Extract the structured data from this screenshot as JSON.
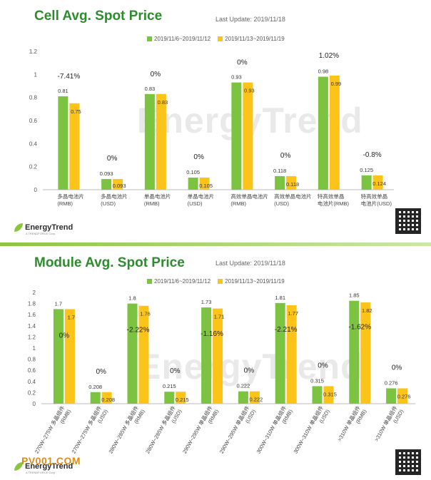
{
  "colors": {
    "green": "#7cc342",
    "yellow": "#fcc419",
    "title": "#2e8b2e"
  },
  "watermark": "EnergyTrend",
  "brand": {
    "name": "EnergyTrend",
    "sub": "A TRENDFORCE Corp."
  },
  "site_watermark": "PV001.COM",
  "chart_data": [
    {
      "type": "bar",
      "title": "Cell Avg. Spot Price",
      "last_update": "Last Update: 2019/11/18",
      "categories": [
        "多晶电池片\n(RMB)",
        "多晶电池片\n(USD)",
        "单晶电池片\n(RMB)",
        "单晶电池片\n(USD)",
        "高效单晶电池片\n(RMB)",
        "高效单晶电池片\n(USD)",
        "特高效单晶\n电池片(RMB)",
        "特高效单晶\n电池片(USD)"
      ],
      "series": [
        {
          "name": "2019/11/6~2019/11/12",
          "values": [
            0.81,
            0.093,
            0.83,
            0.105,
            0.93,
            0.118,
            0.98,
            0.125
          ]
        },
        {
          "name": "2019/11/13~2019/11/19",
          "values": [
            0.75,
            0.093,
            0.83,
            0.105,
            0.93,
            0.118,
            0.99,
            0.124
          ]
        }
      ],
      "value_labels": [
        [
          "0.81",
          "0.093",
          "0.83",
          "0.105",
          "0.93",
          "0.118",
          "0.98",
          "0.125"
        ],
        [
          "0.75",
          "0.093",
          "0.83",
          "0.105",
          "0.93",
          "0.118",
          "0.99",
          "0.124"
        ]
      ],
      "changes": [
        "-7.41%",
        "0%",
        "0%",
        "0%",
        "0%",
        "0%",
        "1.02%",
        "-0.8%"
      ],
      "ylim": [
        0,
        1.2
      ],
      "yticks": [
        0,
        0.2,
        0.4,
        0.6,
        0.8,
        1,
        1.2
      ],
      "ytick_labels": [
        "0",
        "0.2",
        "0.4",
        "0.6",
        "0.8",
        "1",
        "1.2"
      ],
      "legend_position": "top-center",
      "grid": false
    },
    {
      "type": "bar",
      "title": "Module Avg. Spot Price",
      "last_update": "Last Update: 2019/11/18",
      "categories": [
        "270W~275W 多晶组件\n(RMB)",
        "270W~275W 多晶组件\n(USD)",
        "280W~285W 多晶组件\n(RMB)",
        "280W~285W 多晶组件\n(USD)",
        "290W~295W 单晶组件\n(RMB)",
        "290W~295W 单晶组件\n(USD)",
        "300W~310W 单晶组件\n(RMB)",
        "300W~310W 单晶组件\n(USD)",
        ">310W 单晶组件\n(RMB)",
        ">310W 单晶组件\n(USD)"
      ],
      "series": [
        {
          "name": "2019/11/6~2019/11/12",
          "values": [
            1.7,
            0.208,
            1.8,
            0.215,
            1.73,
            0.222,
            1.81,
            0.315,
            1.85,
            0.276
          ]
        },
        {
          "name": "2019/11/13~2019/11/19",
          "values": [
            1.7,
            0.208,
            1.76,
            0.215,
            1.71,
            0.222,
            1.77,
            0.315,
            1.82,
            0.276
          ]
        }
      ],
      "value_labels": [
        [
          "1.7",
          "0.208",
          "1.8",
          "0.215",
          "1.73",
          "0.222",
          "1.81",
          "0.315",
          "1.85",
          "0.276"
        ],
        [
          "1.7",
          "0.208",
          "1.76",
          "0.215",
          "1.71",
          "0.222",
          "1.77",
          "0.315",
          "1.82",
          "0.276"
        ]
      ],
      "changes": [
        "0%",
        "0%",
        "-2.22%",
        "0%",
        "-1.16%",
        "0%",
        "-2.21%",
        "0%",
        "-1.62%",
        "0%"
      ],
      "ylim": [
        0,
        2
      ],
      "yticks": [
        0,
        0.2,
        0.4,
        0.6,
        0.8,
        1,
        1.2,
        1.4,
        1.6,
        1.8,
        2
      ],
      "ytick_labels": [
        "0",
        "0.2",
        "0.4",
        "0.6",
        "0.8",
        "1",
        "1.2",
        "1.4",
        "1.6",
        "1.8",
        "2"
      ],
      "legend_position": "top-center",
      "grid": false
    }
  ]
}
